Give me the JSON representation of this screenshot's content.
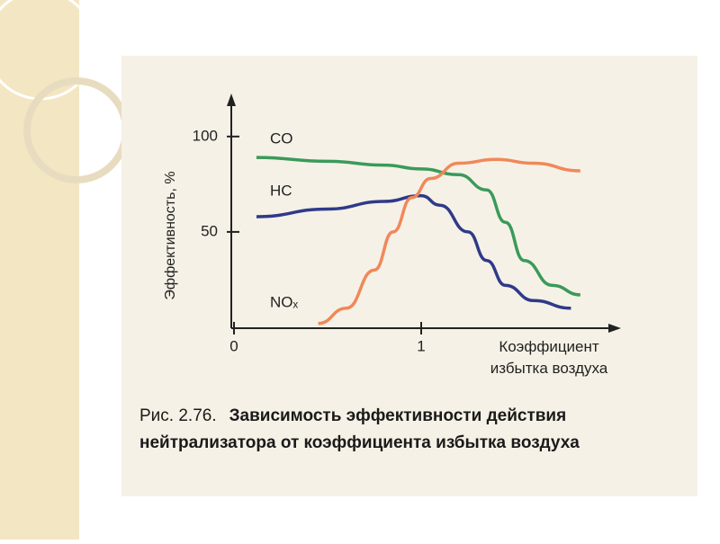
{
  "chart_data": {
    "type": "line",
    "y_label": "Эффективность, %",
    "x_label": "Коэффициент избытка воздуха",
    "xlim": [
      0,
      2
    ],
    "ylim": [
      0,
      115
    ],
    "xticks": [
      0,
      1
    ],
    "yticks": [
      50,
      100
    ],
    "series": [
      {
        "name": "CO",
        "color": "#3a9a5a",
        "x": [
          0.12,
          0.5,
          0.8,
          1.0,
          1.2,
          1.35,
          1.45,
          1.55,
          1.7,
          1.85
        ],
        "values": [
          89,
          87,
          85,
          83,
          80,
          72,
          55,
          35,
          22,
          17
        ]
      },
      {
        "name": "HC",
        "color": "#2e3a8a",
        "x": [
          0.12,
          0.5,
          0.8,
          1.0,
          1.1,
          1.25,
          1.35,
          1.45,
          1.6,
          1.8
        ],
        "values": [
          58,
          62,
          66,
          69,
          64,
          50,
          35,
          22,
          14,
          10
        ]
      },
      {
        "name": "NOₓ",
        "color": "#f0885a",
        "x": [
          0.45,
          0.6,
          0.75,
          0.85,
          0.95,
          1.05,
          1.2,
          1.4,
          1.6,
          1.85
        ],
        "values": [
          2,
          10,
          30,
          50,
          68,
          78,
          86,
          88,
          86,
          82
        ]
      }
    ],
    "caption_label": "Рис. 2.76.",
    "caption": "Зависимость эффективности действия нейтрализатора от коэффициента избытка воздуха"
  }
}
